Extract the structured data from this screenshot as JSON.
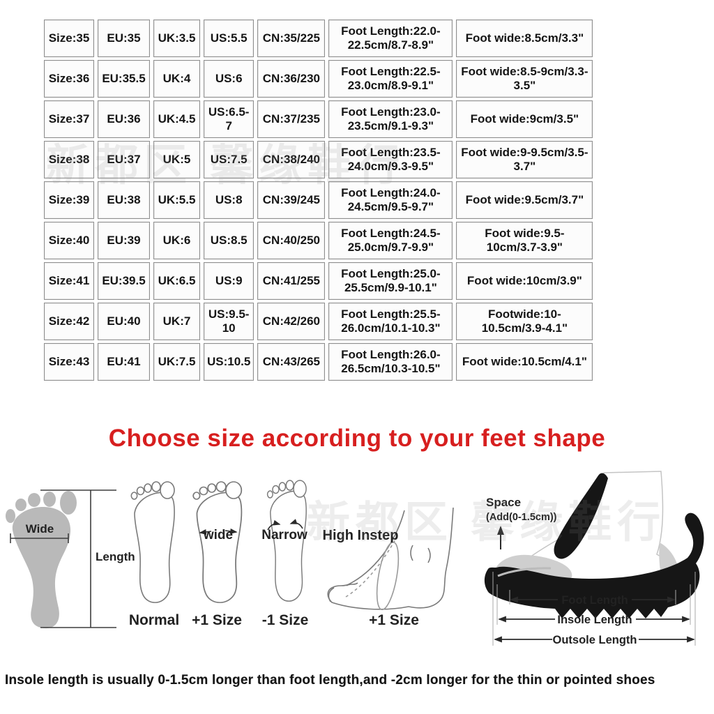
{
  "heading": {
    "text": "Choose size according to your feet shape"
  },
  "watermark": {
    "text": "新都区 馨缘鞋行"
  },
  "size_table": {
    "rows": [
      [
        "Size:35",
        "EU:35",
        "UK:3.5",
        "US:5.5",
        "CN:35/225",
        "Foot Length:22.0-22.5cm/8.7-8.9\"",
        "Foot wide:8.5cm/3.3\""
      ],
      [
        "Size:36",
        "EU:35.5",
        "UK:4",
        "US:6",
        "CN:36/230",
        "Foot Length:22.5-23.0cm/8.9-9.1\"",
        "Foot wide:8.5-9cm/3.3-3.5\""
      ],
      [
        "Size:37",
        "EU:36",
        "UK:4.5",
        "US:6.5-7",
        "CN:37/235",
        "Foot Length:23.0-23.5cm/9.1-9.3\"",
        "Foot wide:9cm/3.5\""
      ],
      [
        "Size:38",
        "EU:37",
        "UK:5",
        "US:7.5",
        "CN:38/240",
        "Foot Length:23.5-24.0cm/9.3-9.5\"",
        "Foot wide:9-9.5cm/3.5-3.7\""
      ],
      [
        "Size:39",
        "EU:38",
        "UK:5.5",
        "US:8",
        "CN:39/245",
        "Foot Length:24.0-24.5cm/9.5-9.7\"",
        "Foot wide:9.5cm/3.7\""
      ],
      [
        "Size:40",
        "EU:39",
        "UK:6",
        "US:8.5",
        "CN:40/250",
        "Foot Length:24.5-25.0cm/9.7-9.9\"",
        "Foot wide:9.5-10cm/3.7-3.9\""
      ],
      [
        "Size:41",
        "EU:39.5",
        "UK:6.5",
        "US:9",
        "CN:41/255",
        "Foot Length:25.0-25.5cm/9.9-10.1\"",
        "Foot wide:10cm/3.9\""
      ],
      [
        "Size:42",
        "EU:40",
        "UK:7",
        "US:9.5-10",
        "CN:42/260",
        "Foot Length:25.5-26.0cm/10.1-10.3\"",
        "Footwide:10-10.5cm/3.9-4.1\""
      ],
      [
        "Size:43",
        "EU:41",
        "UK:7.5",
        "US:10.5",
        "CN:43/265",
        "Foot Length:26.0-26.5cm/10.3-10.5\"",
        "Foot wide:10.5cm/4.1\""
      ]
    ]
  },
  "guide": {
    "footprint": {
      "wide_label": "Wide",
      "length_label": "Length"
    },
    "feet": {
      "normal_label": "Normal",
      "wide_label": "wide",
      "wide_size": "+1 Size",
      "narrow_label": "Narrow",
      "narrow_size": "-1 Size",
      "instep_label": "High Instep",
      "instep_size": "+1 Size"
    },
    "shoe": {
      "space_label": "Space",
      "space_note": "(Add(0-1.5cm))",
      "foot_length_label": "Foot Length",
      "insole_length_label": "Insole Length",
      "outsole_length_label": "Outsole Length"
    }
  },
  "footnote": {
    "text": "Insole length is usually 0-1.5cm longer than foot length,and -2cm longer for the thin or pointed shoes"
  },
  "colors": {
    "heading_red": "#d71f1f",
    "table_border": "#8f8f8f",
    "footprint_gray": "#b9b9b9",
    "line_art_gray": "#7a7a7a",
    "shoe_black": "#161616",
    "shoe_gray": "#cfcfcf"
  }
}
